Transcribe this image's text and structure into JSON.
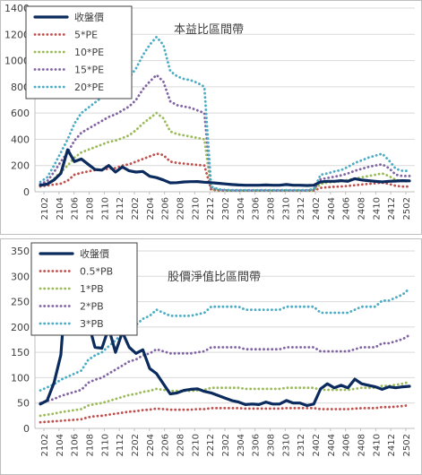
{
  "chart_data": [
    {
      "type": "line",
      "title": "本益比區間帶",
      "ylim": [
        0,
        1400
      ],
      "y_ticks": [
        "0",
        "200",
        "400",
        "600",
        "800",
        "1000",
        "1200",
        "1400"
      ],
      "x_tick_labels": [
        "2102",
        "2104",
        "2106",
        "2108",
        "2110",
        "2112",
        "2202",
        "2204",
        "2206",
        "2208",
        "2210",
        "2212",
        "2302",
        "2304",
        "2306",
        "2308",
        "2310",
        "2312",
        "2402",
        "2404",
        "2406",
        "2408",
        "2410",
        "2412",
        "2502"
      ],
      "grid": true,
      "legend_position": "top-left",
      "series": [
        {
          "name": "收盤價",
          "color": "#0b2a5e",
          "style": "solid",
          "values": [
            50,
            58,
            90,
            140,
            320,
            230,
            250,
            210,
            170,
            165,
            200,
            150,
            190,
            160,
            150,
            155,
            118,
            108,
            90,
            68,
            70,
            75,
            77,
            78,
            73,
            70,
            65,
            60,
            55,
            52,
            50,
            50,
            50,
            52,
            50,
            50,
            55,
            50,
            50,
            48,
            50,
            75,
            80,
            80,
            85,
            80,
            100,
            90,
            85,
            80,
            75,
            80,
            82,
            85,
            83
          ]
        },
        {
          "name": "5*PE",
          "color": "#c0504d",
          "style": "dotted",
          "values": [
            40,
            48,
            55,
            62,
            85,
            130,
            145,
            155,
            165,
            170,
            175,
            180,
            200,
            210,
            230,
            250,
            270,
            290,
            280,
            230,
            220,
            215,
            210,
            205,
            200,
            15,
            10,
            8,
            6,
            6,
            6,
            6,
            6,
            6,
            6,
            6,
            6,
            6,
            6,
            6,
            8,
            30,
            35,
            38,
            40,
            45,
            50,
            55,
            60,
            65,
            70,
            60,
            45,
            40,
            40
          ]
        },
        {
          "name": "10*PE",
          "color": "#9bbb59",
          "style": "dotted",
          "values": [
            50,
            55,
            100,
            150,
            200,
            260,
            300,
            320,
            340,
            360,
            380,
            390,
            410,
            430,
            470,
            520,
            560,
            600,
            560,
            460,
            440,
            430,
            420,
            410,
            400,
            20,
            12,
            10,
            8,
            8,
            8,
            8,
            8,
            8,
            8,
            8,
            8,
            8,
            8,
            8,
            10,
            60,
            70,
            75,
            80,
            90,
            100,
            110,
            120,
            130,
            140,
            120,
            90,
            80,
            80
          ]
        },
        {
          "name": "15*PE",
          "color": "#8064a2",
          "style": "dotted",
          "values": [
            60,
            80,
            150,
            230,
            300,
            390,
            450,
            480,
            510,
            540,
            570,
            590,
            620,
            650,
            700,
            780,
            840,
            890,
            840,
            690,
            660,
            650,
            640,
            620,
            600,
            30,
            15,
            12,
            10,
            10,
            10,
            10,
            10,
            10,
            10,
            10,
            10,
            10,
            10,
            10,
            15,
            95,
            105,
            115,
            125,
            140,
            160,
            175,
            190,
            200,
            210,
            180,
            130,
            120,
            120
          ]
        },
        {
          "name": "20*PE",
          "color": "#4bacc6",
          "style": "dotted",
          "values": [
            75,
            110,
            200,
            300,
            400,
            520,
            600,
            640,
            680,
            720,
            760,
            790,
            830,
            870,
            940,
            1040,
            1120,
            1180,
            1120,
            920,
            880,
            860,
            850,
            830,
            800,
            40,
            20,
            15,
            12,
            12,
            12,
            12,
            12,
            12,
            12,
            12,
            12,
            12,
            12,
            12,
            20,
            130,
            140,
            155,
            165,
            190,
            220,
            240,
            260,
            275,
            290,
            240,
            175,
            160,
            160
          ]
        }
      ]
    },
    {
      "type": "line",
      "title": "股價淨值比區間帶",
      "ylim": [
        0,
        350
      ],
      "y_ticks": [
        "0",
        "50",
        "100",
        "150",
        "200",
        "250",
        "300",
        "350"
      ],
      "x_tick_labels": [
        "2102",
        "2104",
        "2106",
        "2108",
        "2110",
        "2112",
        "2202",
        "2204",
        "2206",
        "2208",
        "2210",
        "2212",
        "2302",
        "2304",
        "2306",
        "2308",
        "2310",
        "2312",
        "2402",
        "2404",
        "2406",
        "2408",
        "2410",
        "2412",
        "2502"
      ],
      "grid": true,
      "legend_position": "top-left",
      "series": [
        {
          "name": "收盤價",
          "color": "#0b2a5e",
          "style": "solid",
          "values": [
            48,
            55,
            90,
            145,
            320,
            240,
            255,
            210,
            160,
            158,
            198,
            150,
            190,
            160,
            148,
            155,
            118,
            108,
            88,
            68,
            70,
            75,
            77,
            78,
            73,
            70,
            65,
            60,
            55,
            52,
            47,
            48,
            47,
            52,
            48,
            48,
            55,
            50,
            50,
            45,
            48,
            78,
            88,
            80,
            85,
            80,
            97,
            88,
            85,
            82,
            77,
            82,
            80,
            82,
            83
          ]
        },
        {
          "name": "0.5*PB",
          "color": "#c0504d",
          "style": "dotted",
          "values": [
            12,
            13,
            14,
            15,
            16,
            17,
            18,
            22,
            24,
            25,
            27,
            29,
            31,
            33,
            34,
            36,
            37,
            39,
            38,
            37,
            37,
            37,
            37,
            38,
            38,
            40,
            40,
            40,
            40,
            40,
            39,
            39,
            39,
            39,
            39,
            39,
            40,
            40,
            40,
            40,
            40,
            38,
            38,
            38,
            38,
            38,
            39,
            40,
            40,
            40,
            42,
            42,
            43,
            44,
            46
          ]
        },
        {
          "name": "1*PB",
          "color": "#9bbb59",
          "style": "dotted",
          "values": [
            25,
            27,
            29,
            32,
            34,
            36,
            38,
            45,
            48,
            50,
            54,
            58,
            62,
            66,
            68,
            72,
            74,
            78,
            76,
            74,
            74,
            74,
            74,
            75,
            76,
            80,
            80,
            80,
            80,
            80,
            78,
            78,
            78,
            78,
            78,
            78,
            80,
            80,
            80,
            80,
            80,
            76,
            76,
            76,
            76,
            76,
            78,
            80,
            80,
            80,
            84,
            84,
            86,
            88,
            92
          ]
        },
        {
          "name": "2*PB",
          "color": "#8064a2",
          "style": "dotted",
          "values": [
            50,
            54,
            58,
            64,
            68,
            72,
            76,
            90,
            96,
            100,
            108,
            116,
            124,
            132,
            136,
            144,
            148,
            156,
            152,
            148,
            148,
            148,
            148,
            150,
            152,
            160,
            160,
            160,
            160,
            160,
            156,
            156,
            156,
            156,
            156,
            156,
            160,
            160,
            160,
            160,
            160,
            152,
            152,
            152,
            152,
            152,
            156,
            160,
            160,
            160,
            168,
            168,
            172,
            176,
            184
          ]
        },
        {
          "name": "3*PB",
          "color": "#4bacc6",
          "style": "dotted",
          "values": [
            75,
            81,
            87,
            96,
            102,
            108,
            114,
            135,
            144,
            150,
            162,
            174,
            186,
            198,
            204,
            216,
            222,
            234,
            228,
            222,
            222,
            222,
            222,
            225,
            228,
            240,
            240,
            240,
            240,
            240,
            234,
            234,
            234,
            234,
            234,
            234,
            240,
            240,
            240,
            240,
            240,
            228,
            228,
            228,
            228,
            228,
            234,
            240,
            240,
            240,
            252,
            252,
            258,
            264,
            276
          ]
        }
      ]
    }
  ]
}
